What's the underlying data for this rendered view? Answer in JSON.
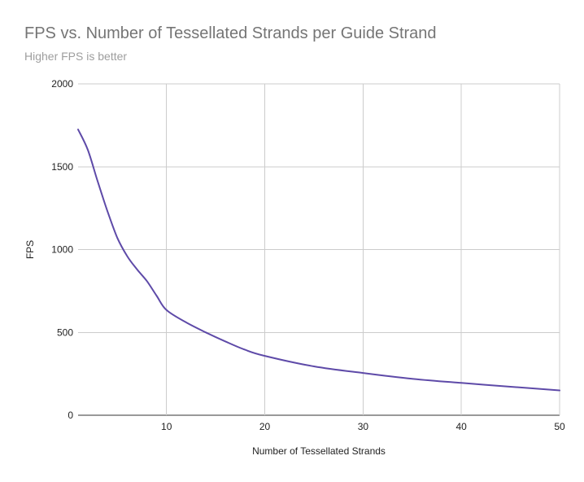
{
  "chart_data": {
    "type": "line",
    "title": "FPS vs. Number of Tessellated Strands per Guide Strand",
    "subtitle": "Higher FPS is better",
    "xlabel": "Number of Tessellated Strands",
    "ylabel": "FPS",
    "xlim": [
      1,
      50
    ],
    "ylim": [
      0,
      2000
    ],
    "x_ticks": [
      10,
      20,
      30,
      40,
      50
    ],
    "y_ticks": [
      0,
      500,
      1000,
      1500,
      2000
    ],
    "grid": true,
    "legend": "none",
    "series": [
      {
        "color": "#5e4aa8",
        "x": [
          1,
          2,
          3,
          4,
          5,
          6,
          7,
          8,
          9,
          10,
          12,
          14,
          16,
          18,
          20,
          25,
          30,
          35,
          40,
          45,
          50
        ],
        "y": [
          1725,
          1600,
          1410,
          1230,
          1070,
          960,
          880,
          810,
          720,
          635,
          560,
          500,
          445,
          395,
          358,
          295,
          255,
          220,
          195,
          172,
          150
        ]
      }
    ]
  }
}
